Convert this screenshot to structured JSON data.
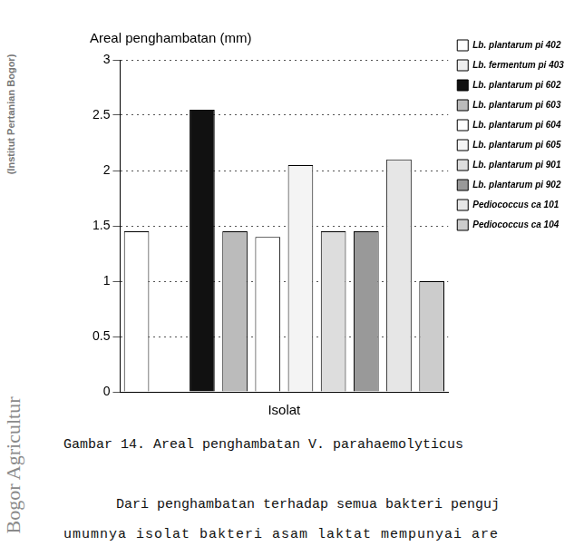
{
  "chart_data": {
    "type": "bar",
    "y_label": "Areal penghambatan (mm)",
    "x_label": "Isolat",
    "categories": [
      "Lb. plantarum pi 402",
      "Lb. fermentum pi 403",
      "Lb. plantarum pi 602",
      "Lb. plantarum pi 603",
      "Lb. plantarum pi 604",
      "Lb. plantarum pi 605",
      "Lb. plantarum pi 901",
      "Lb. plantarum pi 902",
      "Pediococcus ca 101",
      "Pediococcus ca 104"
    ],
    "values": [
      1.45,
      0,
      2.55,
      1.45,
      1.4,
      2.05,
      1.45,
      1.45,
      2.1,
      1.0
    ],
    "colors": [
      "#ffffff",
      "#eeeeee",
      "#111111",
      "#bbbbbb",
      "#ffffff",
      "#f4f4f4",
      "#dddddd",
      "#999999",
      "#e6e6e6",
      "#cccccc"
    ],
    "ylim": [
      0,
      3
    ],
    "yticks": [
      0,
      0.5,
      1,
      1.5,
      2,
      2.5,
      3
    ],
    "grid": true,
    "legend": "right",
    "tick_labels": "y"
  },
  "caption": "Gambar 14.  Areal penghambatan V. parahaemolyticus",
  "body_text": [
    "Dari penghambatan terhadap semua bakteri penguj",
    "umumnya isolat bakteri asam laktat mempunyai are"
  ],
  "watermarks": [
    "(Institut Pertanian Bogor)",
    "Bogor Agricultur"
  ]
}
